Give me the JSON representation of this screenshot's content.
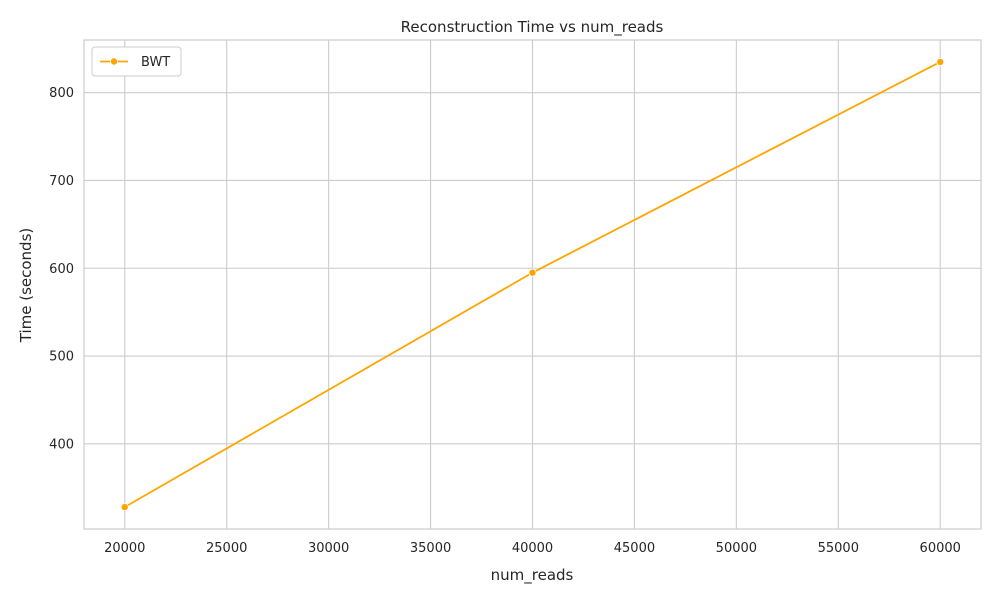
{
  "chart_data": {
    "type": "line",
    "title": "Reconstruction Time vs num_reads",
    "xlabel": "num_reads",
    "ylabel": "Time (seconds)",
    "x": [
      20000,
      40000,
      60000
    ],
    "series": [
      {
        "name": "BWT",
        "values": [
          328,
          595,
          835
        ],
        "color": "#ffa500",
        "marker": "circle"
      }
    ],
    "xlim": [
      18000,
      62000
    ],
    "ylim": [
      303,
      860
    ],
    "xticks": [
      20000,
      25000,
      30000,
      35000,
      40000,
      45000,
      50000,
      55000,
      60000
    ],
    "yticks": [
      400,
      500,
      600,
      700,
      800
    ],
    "grid": true,
    "legend_position": "top-left"
  },
  "colors": {
    "grid": "#cccccc",
    "axis_frame": "#cccccc",
    "text": "#262626",
    "background": "#ffffff"
  }
}
